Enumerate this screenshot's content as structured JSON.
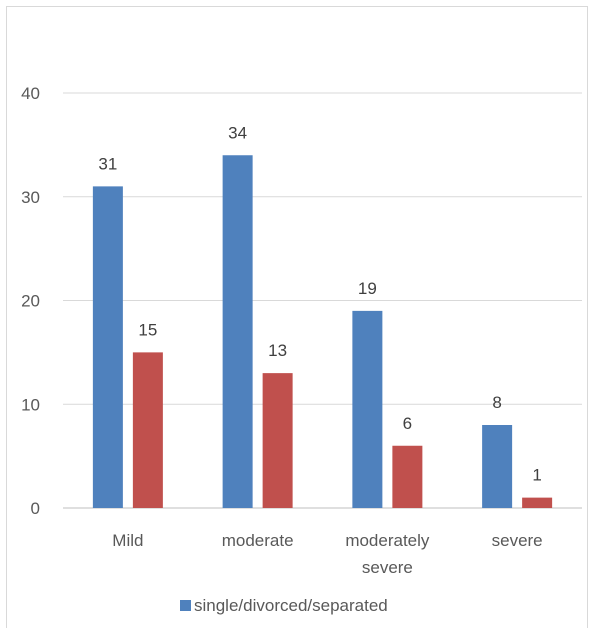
{
  "chart_data": {
    "type": "bar",
    "categories": [
      [
        "Mild"
      ],
      [
        "moderate"
      ],
      [
        "moderately",
        "severe"
      ],
      [
        "severe"
      ]
    ],
    "series": [
      {
        "name": "single/divorced/separated",
        "values": [
          31,
          34,
          19,
          8
        ],
        "color": "#4f81bd"
      },
      {
        "values": [
          15,
          13,
          6,
          1
        ],
        "color": "#c0504d"
      }
    ],
    "ylim": [
      0,
      40
    ],
    "yticks": [
      0,
      10,
      20,
      30,
      40
    ],
    "grid": true,
    "data_labels": true,
    "legend": "bottom"
  }
}
